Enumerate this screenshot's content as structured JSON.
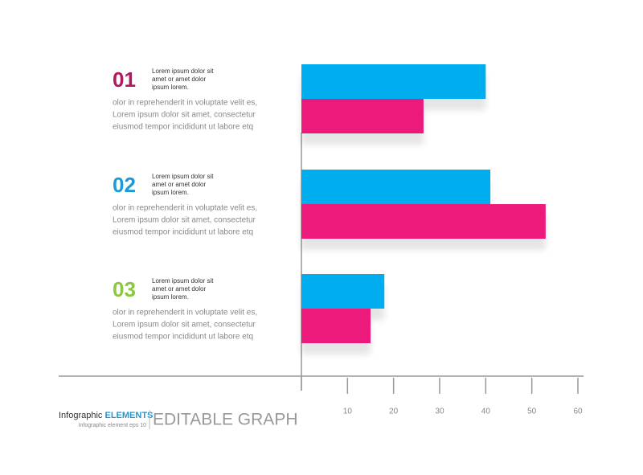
{
  "chart_data": {
    "type": "bar",
    "orientation": "horizontal",
    "categories": [
      "01",
      "02",
      "03"
    ],
    "category_colors": [
      "#b0185f",
      "#1a9ad6",
      "#8dc63f"
    ],
    "series": [
      {
        "color": "#00aeef",
        "values": [
          40,
          41,
          18
        ]
      },
      {
        "color": "#ec1a7a",
        "values": [
          26.5,
          53,
          15
        ]
      }
    ],
    "xlim": [
      0,
      60
    ],
    "xticks": [
      10,
      20,
      30,
      40,
      50,
      60
    ],
    "items": [
      {
        "note": [
          "Lorem ipsum dolor sit",
          "amet or amet dolor",
          "ipsum lorem."
        ],
        "body": [
          "olor in reprehenderit in voluptate velit es,",
          "Lorem ipsum dolor sit amet, consectetur",
          "eiusmod tempor incididunt ut labore etq"
        ]
      },
      {
        "note": [
          "Lorem ipsum dolor sit",
          "amet or amet dolor",
          "ipsum lorem."
        ],
        "body": [
          "olor in reprehenderit in voluptate velit es,",
          "Lorem ipsum dolor sit amet, consectetur",
          "eiusmod tempor incididunt ut labore etq"
        ]
      },
      {
        "note": [
          "Lorem ipsum dolor sit",
          "amet or amet dolor",
          "ipsum lorem."
        ],
        "body": [
          "olor in reprehenderit in voluptate velit es,",
          "Lorem ipsum dolor sit amet, consectetur",
          "eiusmod tempor incididunt ut labore etq"
        ]
      }
    ]
  },
  "footer": {
    "brand": "Infographic",
    "brand_highlight": "ELEMENTS",
    "caption": "Infographic element eps 10",
    "title": "EDITABLE GRAPH"
  }
}
